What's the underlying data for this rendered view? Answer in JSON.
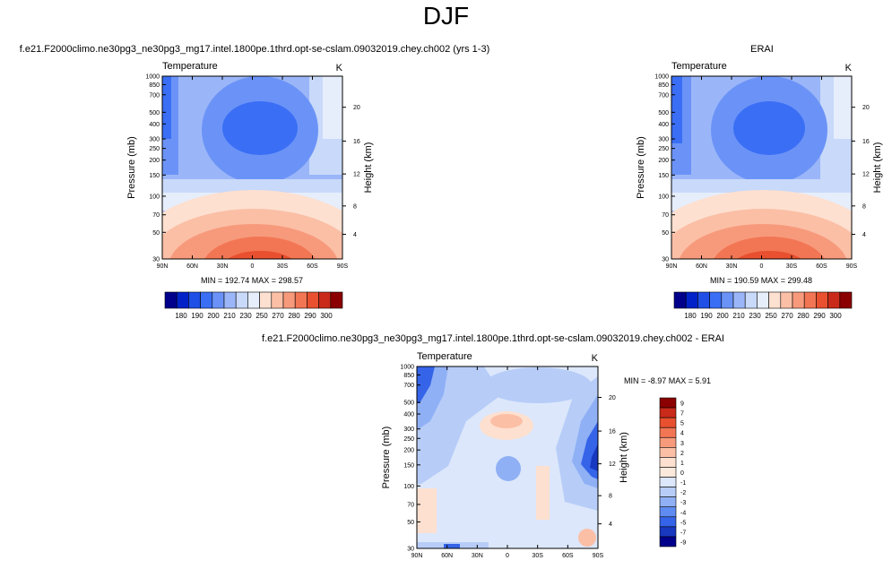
{
  "page_title": "DJF",
  "chart_data": [
    {
      "type": "heatmap",
      "title": "f.e21.F2000climo.ne30pg3_ne30pg3_mg17.intel.1800pe.1thrd.opt-se-cslam.09032019.chey.ch002 (yrs 1-3)",
      "variable": "Temperature",
      "units": "K",
      "xlabel": "",
      "ylabel": "Pressure (mb)",
      "ylabel_right": "Height (km)",
      "x_ticks": [
        "90N",
        "60N",
        "30N",
        "0",
        "30S",
        "60S",
        "90S"
      ],
      "y_ticks": [
        "30",
        "50",
        "70",
        "100",
        "150",
        "200",
        "250",
        "300",
        "400",
        "500",
        "700",
        "850",
        "1000"
      ],
      "y_ticks_right": [
        "20",
        "16",
        "12",
        "8",
        "4"
      ],
      "min_label": "MIN = 192.74",
      "max_label": "MAX = 298.57",
      "min": 192.74,
      "max": 298.57,
      "colorbar_labels": [
        "180",
        "190",
        "200",
        "210",
        "230",
        "250",
        "270",
        "280",
        "290",
        "300"
      ],
      "colorbar_colors": [
        "#00008b",
        "#0022c8",
        "#1f4fe6",
        "#3a6ef5",
        "#6b93f7",
        "#9bb6f8",
        "#c8d9fa",
        "#e6eefc",
        "#fde0d0",
        "#fbbfa6",
        "#f79a7c",
        "#f27654",
        "#e8502f",
        "#c92a1a",
        "#8b0000"
      ]
    },
    {
      "type": "heatmap",
      "title": "ERAI",
      "variable": "Temperature",
      "units": "K",
      "xlabel": "",
      "ylabel": "Pressure (mb)",
      "ylabel_right": "Height (km)",
      "x_ticks": [
        "90N",
        "60N",
        "30N",
        "0",
        "30S",
        "60S",
        "90S"
      ],
      "y_ticks": [
        "30",
        "50",
        "70",
        "100",
        "150",
        "200",
        "250",
        "300",
        "400",
        "500",
        "700",
        "850",
        "1000"
      ],
      "y_ticks_right": [
        "20",
        "16",
        "12",
        "8",
        "4"
      ],
      "min_label": "MIN = 190.59",
      "max_label": "MAX = 299.48",
      "min": 190.59,
      "max": 299.48,
      "colorbar_labels": [
        "180",
        "190",
        "200",
        "210",
        "230",
        "250",
        "270",
        "280",
        "290",
        "300"
      ],
      "colorbar_colors": [
        "#00008b",
        "#0022c8",
        "#1f4fe6",
        "#3a6ef5",
        "#6b93f7",
        "#9bb6f8",
        "#c8d9fa",
        "#e6eefc",
        "#fde0d0",
        "#fbbfa6",
        "#f79a7c",
        "#f27654",
        "#e8502f",
        "#c92a1a",
        "#8b0000"
      ]
    },
    {
      "type": "heatmap",
      "title": "f.e21.F2000climo.ne30pg3_ne30pg3_mg17.intel.1800pe.1thrd.opt-se-cslam.09032019.chey.ch002 - ERAI",
      "variable": "Temperature",
      "units": "K",
      "xlabel": "",
      "ylabel": "Pressure (mb)",
      "ylabel_right": "Height (km)",
      "x_ticks": [
        "90N",
        "60N",
        "30N",
        "0",
        "30S",
        "60S",
        "90S"
      ],
      "y_ticks": [
        "30",
        "50",
        "70",
        "100",
        "150",
        "200",
        "250",
        "300",
        "400",
        "500",
        "700",
        "850",
        "1000"
      ],
      "y_ticks_right": [
        "20",
        "16",
        "12",
        "8",
        "4"
      ],
      "min_label": "MIN =  -8.97",
      "max_label": "MAX =   5.91",
      "min": -8.97,
      "max": 5.91,
      "colorbar_labels": [
        "9",
        "7",
        "5",
        "4",
        "3",
        "2",
        "1",
        "0",
        "-1",
        "-2",
        "-3",
        "-4",
        "-5",
        "-7",
        "-9"
      ],
      "colorbar_colors": [
        "#8b0000",
        "#c92a1a",
        "#e8502f",
        "#f27654",
        "#f79a7c",
        "#fbbfa6",
        "#fde0d0",
        "#fbe9dc",
        "#dce7fb",
        "#b7cdf8",
        "#8fb0f5",
        "#5f8cf2",
        "#3564e8",
        "#1838c0",
        "#00008b"
      ]
    }
  ]
}
